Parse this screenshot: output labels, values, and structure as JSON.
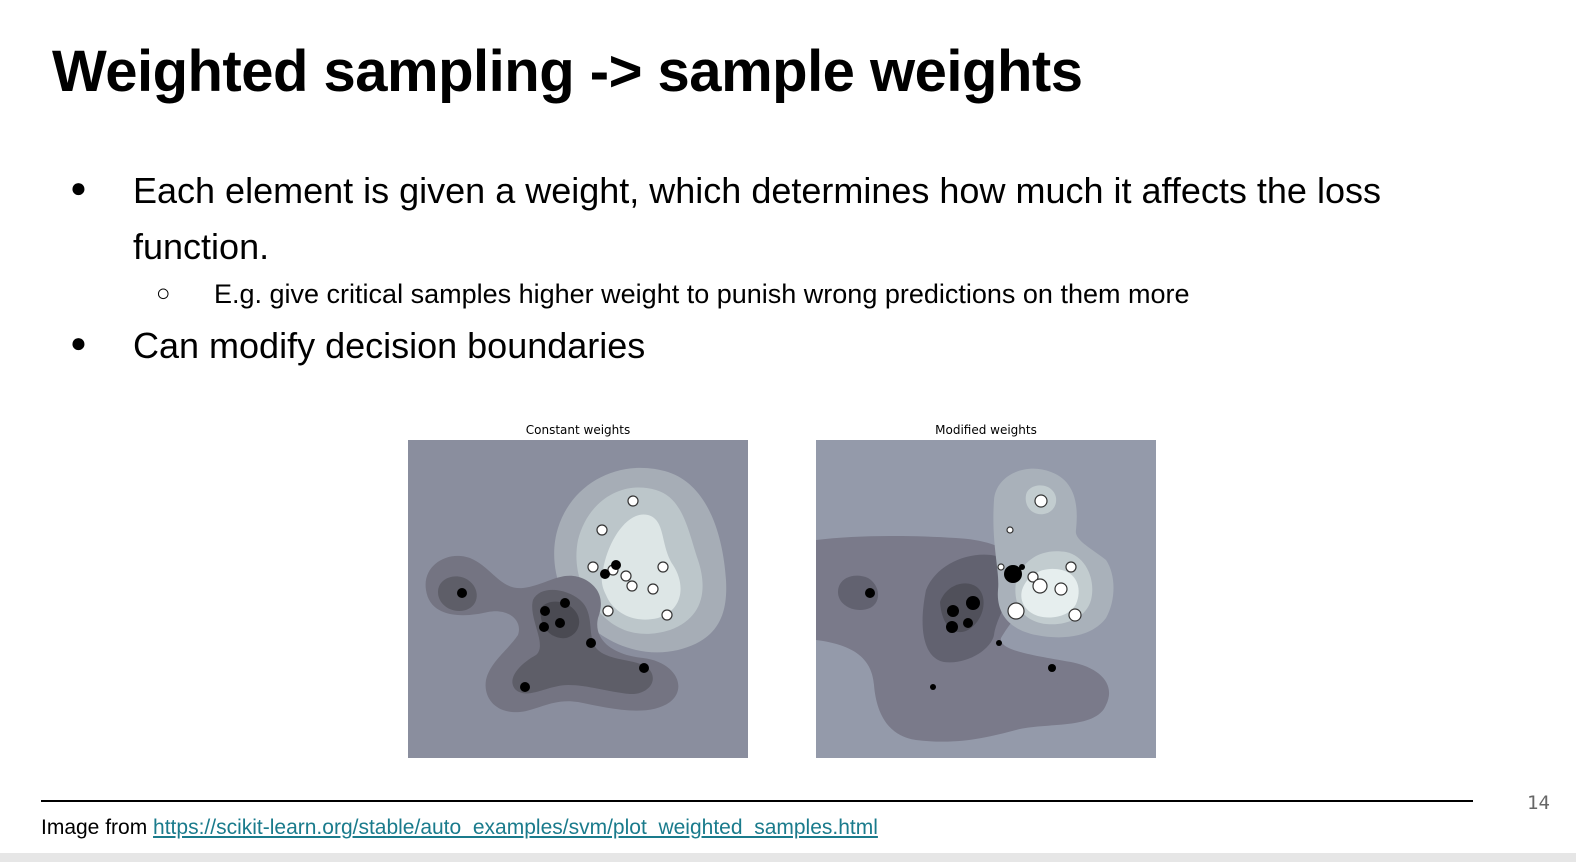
{
  "slide": {
    "title": "Weighted sampling -> sample weights",
    "bullets": [
      "Each element is given a weight, which determines how much it affects the loss function.",
      "Can modify decision boundaries"
    ],
    "sub_bullet": "E.g. give critical samples higher weight to punish wrong predictions on them more",
    "footer_prefix": "Image from ",
    "footer_link": "https://scikit-learn.org/stable/auto_examples/svm/plot_weighted_samples.html",
    "page_number": "14"
  },
  "figures": {
    "left_title": "Constant weights",
    "right_title": "Modified weights"
  },
  "colors": {
    "link": "#1a7b8c",
    "plot_background": "#8c90a0",
    "dark_region": "#55555e",
    "light_region": "#e8eeee"
  }
}
